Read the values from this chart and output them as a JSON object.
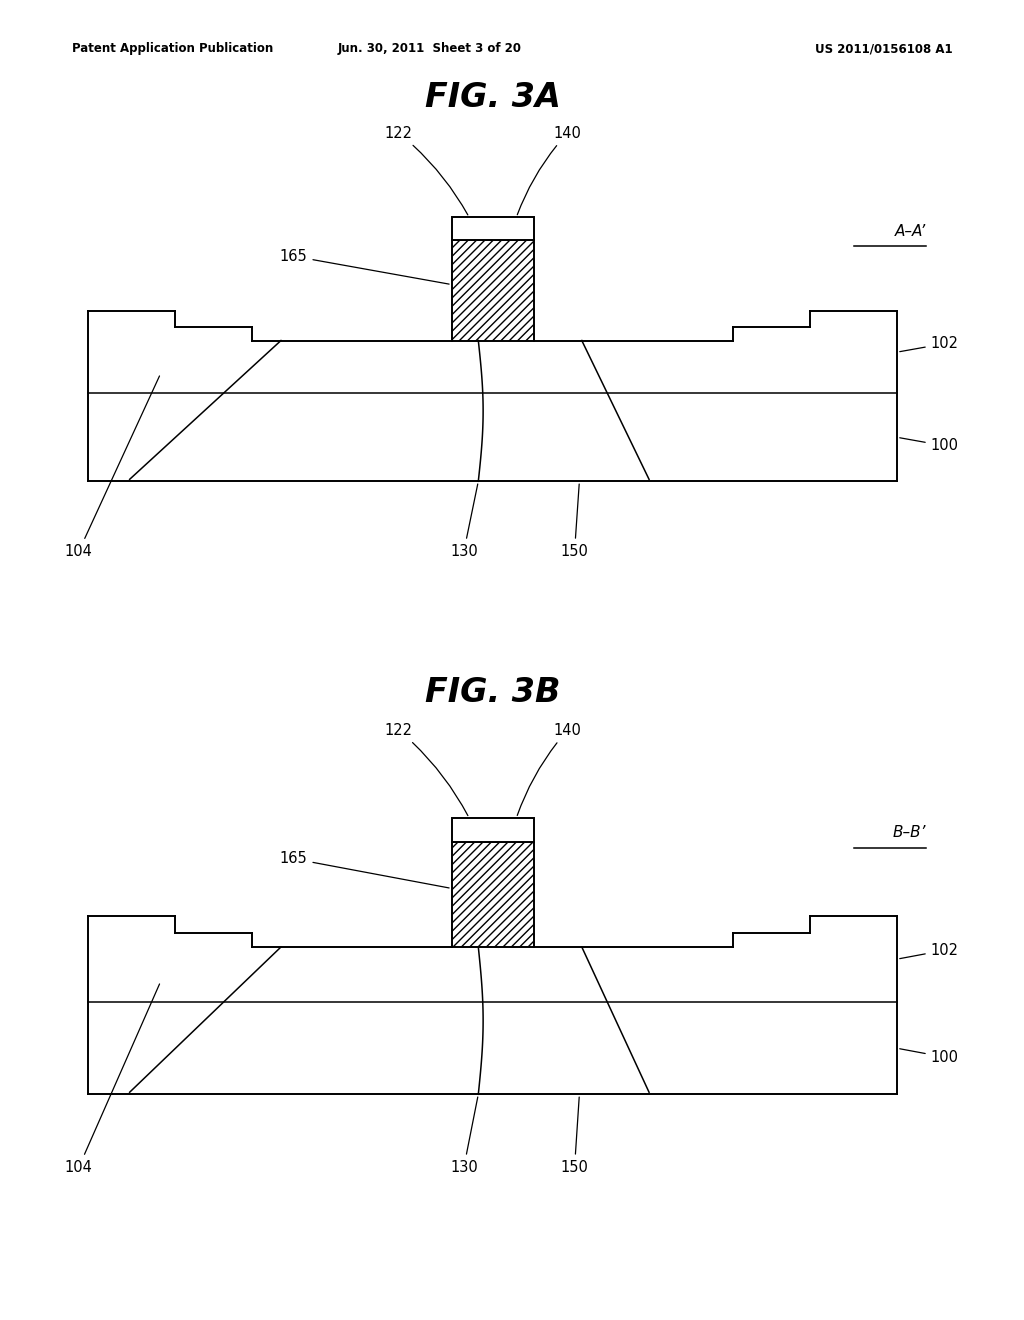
{
  "header_left": "Patent Application Publication",
  "header_center": "Jun. 30, 2011  Sheet 3 of 20",
  "header_right": "US 2011/0156108 A1",
  "fig3a_title": "FIG. 3A",
  "fig3b_title": "FIG. 3B",
  "label_AA": "A–A’",
  "label_BB": "B–B’",
  "bg_color": "#ffffff"
}
